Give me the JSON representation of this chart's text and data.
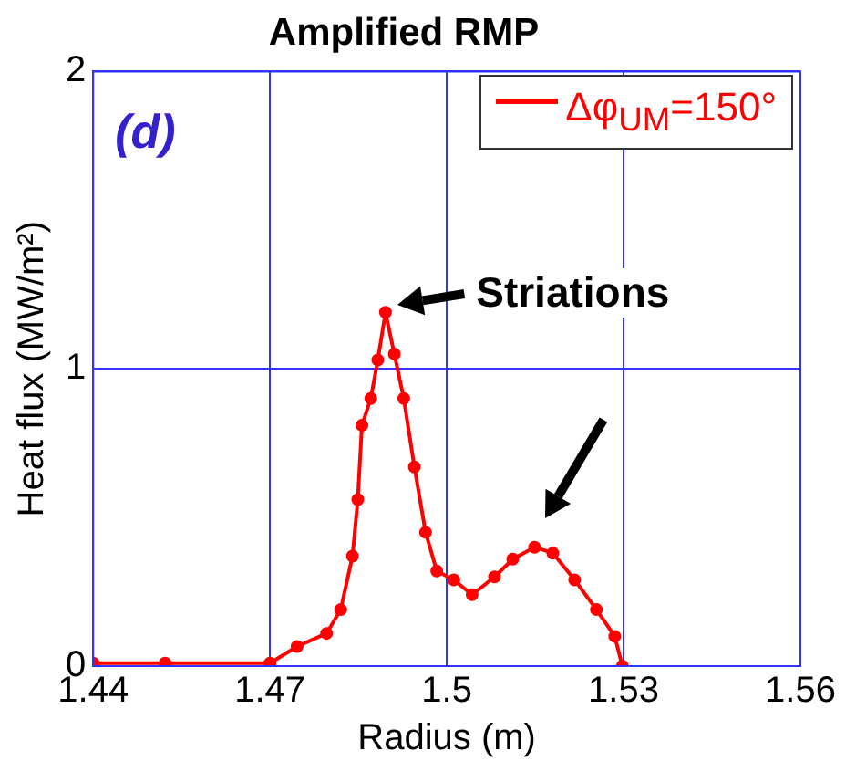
{
  "chart_data": {
    "type": "line",
    "title": "Amplified RMP",
    "xlabel": "Radius (m)",
    "ylabel": "Heat flux (MW/m²)",
    "annotations": [
      "(d)",
      "Striations"
    ],
    "x": [
      1.44,
      1.4522,
      1.47,
      1.4746,
      1.4796,
      1.482,
      1.484,
      1.4849,
      1.4856,
      1.4871,
      1.4883,
      1.4896,
      1.4911,
      1.4927,
      1.4945,
      1.4964,
      1.4983,
      1.5012,
      1.5043,
      1.5081,
      1.5112,
      1.5149,
      1.518,
      1.5217,
      1.5254,
      1.5285,
      1.5298
    ],
    "series": [
      {
        "name": "Δφ$_{UM}$=150°",
        "color": "#ff0000",
        "values": [
          0.01,
          0.01,
          0.01,
          0.066,
          0.11,
          0.19,
          0.37,
          0.56,
          0.81,
          0.9,
          1.03,
          1.19,
          1.05,
          0.9,
          0.67,
          0.45,
          0.32,
          0.29,
          0.24,
          0.3,
          0.36,
          0.4,
          0.38,
          0.29,
          0.19,
          0.1,
          0.0
        ]
      }
    ],
    "xlim": [
      1.44,
      1.56
    ],
    "xticks": [
      1.44,
      1.47,
      1.5,
      1.53,
      1.56
    ],
    "ylim": [
      0,
      2
    ],
    "yticks": [
      0,
      1,
      2
    ],
    "grid": true,
    "legend": "top right",
    "marker": "circle",
    "line_style": "solid"
  }
}
